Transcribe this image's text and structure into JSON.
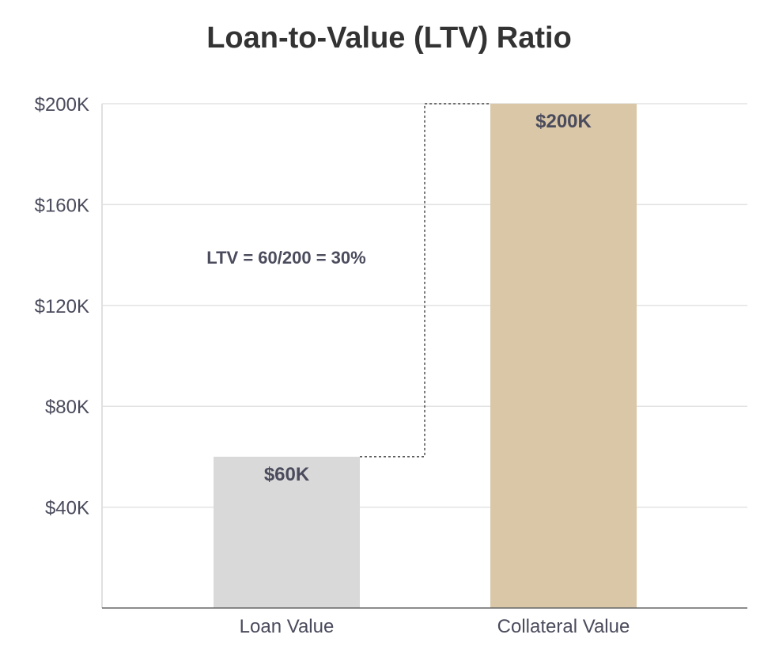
{
  "chart_data": {
    "type": "bar",
    "title": "Loan-to-Value (LTV) Ratio",
    "xlabel": "",
    "ylabel": "",
    "categories": [
      "Loan Value",
      "Collateral Value"
    ],
    "values": [
      60,
      200
    ],
    "data_labels": [
      "$60K",
      "$200K"
    ],
    "colors": [
      "#d9d9d9",
      "#d9c7a8"
    ],
    "ylim": [
      0,
      200
    ],
    "yticks": [
      40,
      80,
      120,
      160,
      200
    ],
    "ytick_labels": [
      "$40K",
      "$80K",
      "$120K",
      "$160K",
      "$200K"
    ],
    "grid": true,
    "annotation": {
      "text": "LTV = 60/200 = 30%",
      "connector": "dashed"
    },
    "legend": "none"
  }
}
